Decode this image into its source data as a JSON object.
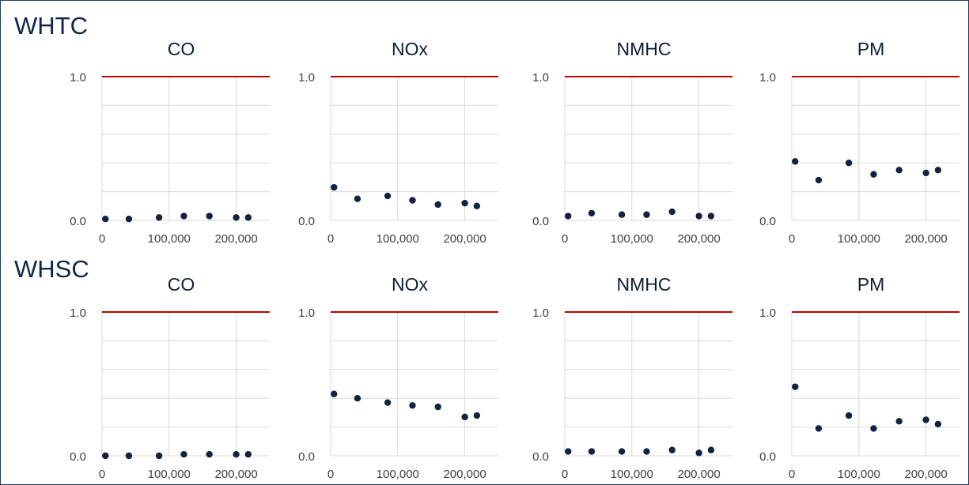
{
  "colors": {
    "limit_line": "#c00000",
    "marker": "#0f2340",
    "grid": "#d9d9d9",
    "title": "#0f2846"
  },
  "sections": [
    {
      "title": "WHTC",
      "charts": [
        {
          "title": "CO",
          "chart_data": {
            "type": "scatter",
            "title": "CO",
            "ylim": [
              0,
              1
            ],
            "xlim": [
              0,
              250000
            ],
            "xticks": [
              "0",
              "100,000",
              "200,000"
            ],
            "yticks": [
              "0.0",
              "1.0"
            ],
            "limit_line": 1.0,
            "x": [
              5000,
              40000,
              85000,
              122000,
              160000,
              200000,
              218000
            ],
            "y": [
              0.01,
              0.01,
              0.02,
              0.03,
              0.03,
              0.02,
              0.02
            ]
          }
        },
        {
          "title": "NOx",
          "chart_data": {
            "type": "scatter",
            "title": "NOx",
            "ylim": [
              0,
              1
            ],
            "xlim": [
              0,
              250000
            ],
            "xticks": [
              "0",
              "100,000",
              "200,000"
            ],
            "yticks": [
              "0.0",
              "1.0"
            ],
            "limit_line": 1.0,
            "x": [
              5000,
              40000,
              85000,
              122000,
              160000,
              200000,
              218000
            ],
            "y": [
              0.23,
              0.15,
              0.17,
              0.14,
              0.11,
              0.12,
              0.1
            ]
          }
        },
        {
          "title": "NMHC",
          "chart_data": {
            "type": "scatter",
            "title": "NMHC",
            "ylim": [
              0,
              1
            ],
            "xlim": [
              0,
              250000
            ],
            "xticks": [
              "0",
              "100,000",
              "200,000"
            ],
            "yticks": [
              "0.0",
              "1.0"
            ],
            "limit_line": 1.0,
            "x": [
              5000,
              40000,
              85000,
              122000,
              160000,
              200000,
              218000
            ],
            "y": [
              0.03,
              0.05,
              0.04,
              0.04,
              0.06,
              0.03,
              0.03
            ]
          }
        },
        {
          "title": "PM",
          "chart_data": {
            "type": "scatter",
            "title": "PM",
            "ylim": [
              0,
              1
            ],
            "xlim": [
              0,
              250000
            ],
            "xticks": [
              "0",
              "100,000",
              "200,000"
            ],
            "yticks": [
              "0.0",
              "1.0"
            ],
            "limit_line": 1.0,
            "x": [
              5000,
              40000,
              85000,
              122000,
              160000,
              200000,
              218000
            ],
            "y": [
              0.41,
              0.28,
              0.4,
              0.32,
              0.35,
              0.33,
              0.35
            ]
          }
        }
      ]
    },
    {
      "title": "WHSC",
      "charts": [
        {
          "title": "CO",
          "chart_data": {
            "type": "scatter",
            "title": "CO",
            "ylim": [
              0,
              1
            ],
            "xlim": [
              0,
              250000
            ],
            "xticks": [
              "0",
              "100,000",
              "200,000"
            ],
            "yticks": [
              "0.0",
              "1.0"
            ],
            "limit_line": 1.0,
            "x": [
              5000,
              40000,
              85000,
              122000,
              160000,
              200000,
              218000
            ],
            "y": [
              0.0,
              0.0,
              0.0,
              0.01,
              0.01,
              0.01,
              0.01
            ]
          }
        },
        {
          "title": "NOx",
          "chart_data": {
            "type": "scatter",
            "title": "NOx",
            "ylim": [
              0,
              1
            ],
            "xlim": [
              0,
              250000
            ],
            "xticks": [
              "0",
              "100,000",
              "200,000"
            ],
            "yticks": [
              "0.0",
              "1.0"
            ],
            "limit_line": 1.0,
            "x": [
              5000,
              40000,
              85000,
              122000,
              160000,
              200000,
              218000
            ],
            "y": [
              0.43,
              0.4,
              0.37,
              0.35,
              0.34,
              0.27,
              0.28
            ]
          }
        },
        {
          "title": "NMHC",
          "chart_data": {
            "type": "scatter",
            "title": "NMHC",
            "ylim": [
              0,
              1
            ],
            "xlim": [
              0,
              250000
            ],
            "xticks": [
              "0",
              "100,000",
              "200,000"
            ],
            "yticks": [
              "0.0",
              "1.0"
            ],
            "limit_line": 1.0,
            "x": [
              5000,
              40000,
              85000,
              122000,
              160000,
              200000,
              218000
            ],
            "y": [
              0.03,
              0.03,
              0.03,
              0.03,
              0.04,
              0.02,
              0.04
            ]
          }
        },
        {
          "title": "PM",
          "chart_data": {
            "type": "scatter",
            "title": "PM",
            "ylim": [
              0,
              1
            ],
            "xlim": [
              0,
              250000
            ],
            "xticks": [
              "0",
              "100,000",
              "200,000"
            ],
            "yticks": [
              "0.0",
              "1.0"
            ],
            "limit_line": 1.0,
            "x": [
              5000,
              40000,
              85000,
              122000,
              160000,
              200000,
              218000
            ],
            "y": [
              0.48,
              0.19,
              0.28,
              0.19,
              0.24,
              0.25,
              0.22
            ]
          }
        }
      ]
    }
  ]
}
